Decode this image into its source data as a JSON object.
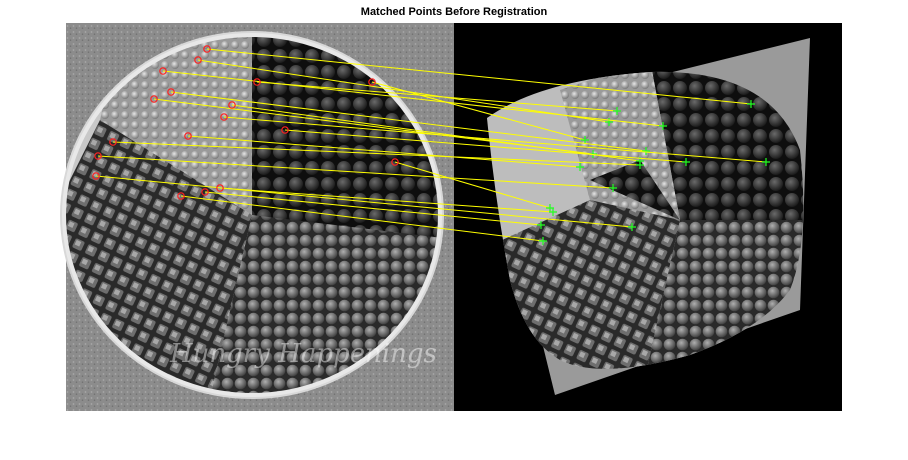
{
  "figure": {
    "title": "Matched Points Before Registration"
  },
  "images": {
    "left": {
      "name": "original-image",
      "content": "grayscale photo of a round platter of candies"
    },
    "right": {
      "name": "distorted-image",
      "content": "rotated and scaled copy of the same photo on black background"
    }
  },
  "watermark": "Hungry Happenings",
  "colors": {
    "match_line": "#ffff00",
    "original_marker": "#ff2020",
    "distorted_marker": "#20ff20",
    "background_black": "#000000"
  },
  "matched_point_count": 18
}
